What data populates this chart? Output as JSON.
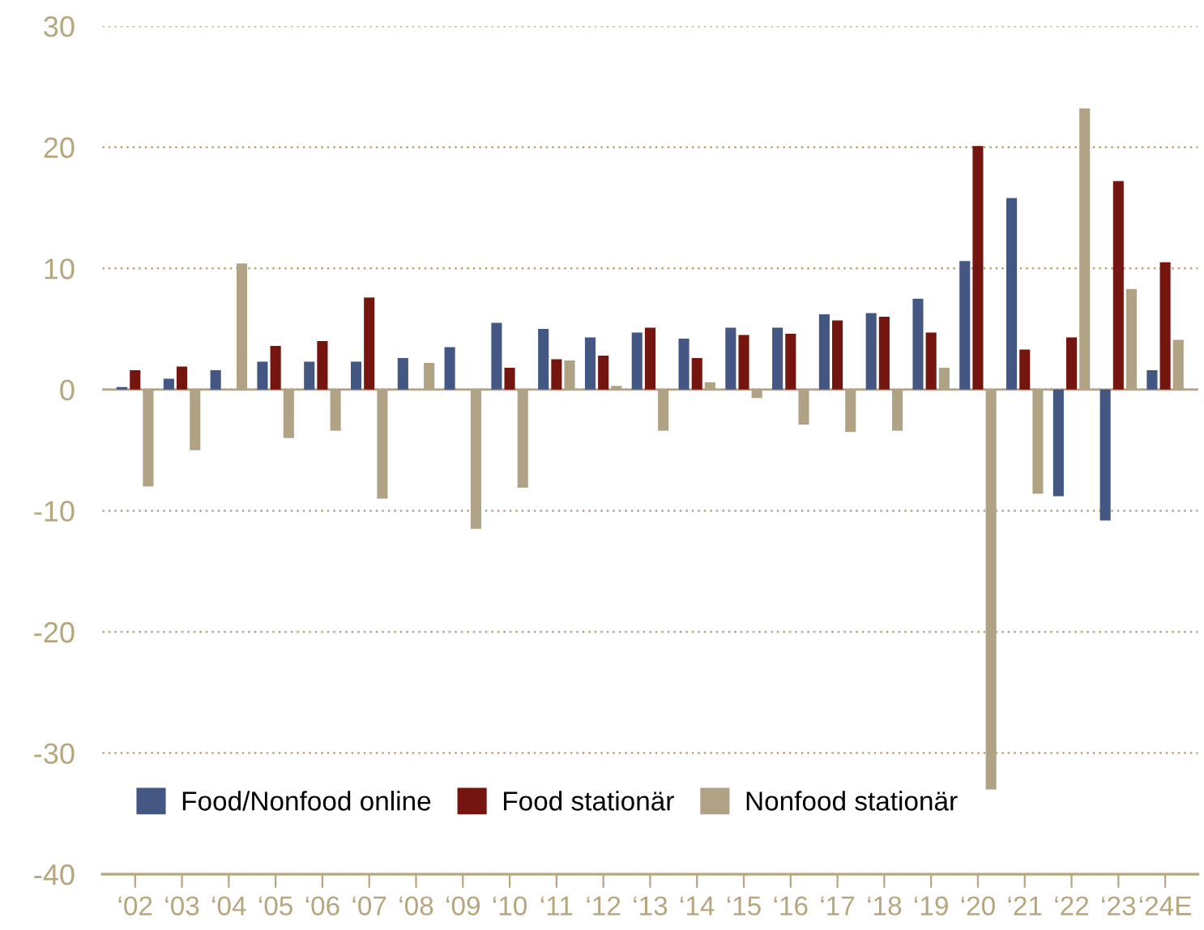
{
  "chart_data": {
    "type": "bar",
    "categories": [
      "‘02",
      "‘03",
      "‘04",
      "‘05",
      "‘06",
      "‘07",
      "‘08",
      "‘09",
      "‘10",
      "‘11",
      "‘12",
      "‘13",
      "‘14",
      "‘15",
      "‘16",
      "‘17",
      "‘18",
      "‘19",
      "‘20",
      "‘21",
      "‘22",
      "‘23",
      "‘24E"
    ],
    "series": [
      {
        "name": "Food/Nonfood online",
        "color": "#435782",
        "values": [
          0.2,
          0.9,
          1.6,
          2.3,
          2.3,
          2.3,
          2.6,
          3.5,
          5.5,
          5.0,
          4.3,
          4.7,
          4.2,
          5.1,
          5.1,
          6.2,
          6.3,
          7.5,
          10.6,
          15.8,
          -8.8,
          -10.8,
          1.6
        ]
      },
      {
        "name": "Food stationär",
        "color": "#74160f",
        "values": [
          1.6,
          1.9,
          null,
          3.6,
          4.0,
          7.6,
          null,
          null,
          1.8,
          2.5,
          2.8,
          5.1,
          2.6,
          4.5,
          4.6,
          5.7,
          6.0,
          4.7,
          20.1,
          3.3,
          4.3,
          17.2,
          10.5
        ]
      },
      {
        "name": "Nonfood stationär",
        "color": "#b0a285",
        "values": [
          -8.0,
          -5.0,
          10.4,
          -4.0,
          -3.4,
          -9.0,
          2.2,
          -11.5,
          -8.1,
          2.4,
          0.3,
          -3.4,
          0.6,
          -0.7,
          -2.9,
          -3.5,
          -3.4,
          1.8,
          -33.0,
          -8.6,
          23.2,
          8.3,
          4.1
        ]
      }
    ],
    "ylim": [
      -40,
      30
    ],
    "yticks": [
      -40,
      -30,
      -20,
      -10,
      0,
      10,
      20,
      30
    ],
    "grid": "y",
    "legend": "bottom left",
    "ref_lines": [
      {
        "axis": "y",
        "value": 0,
        "color": "#b0a285"
      }
    ]
  }
}
